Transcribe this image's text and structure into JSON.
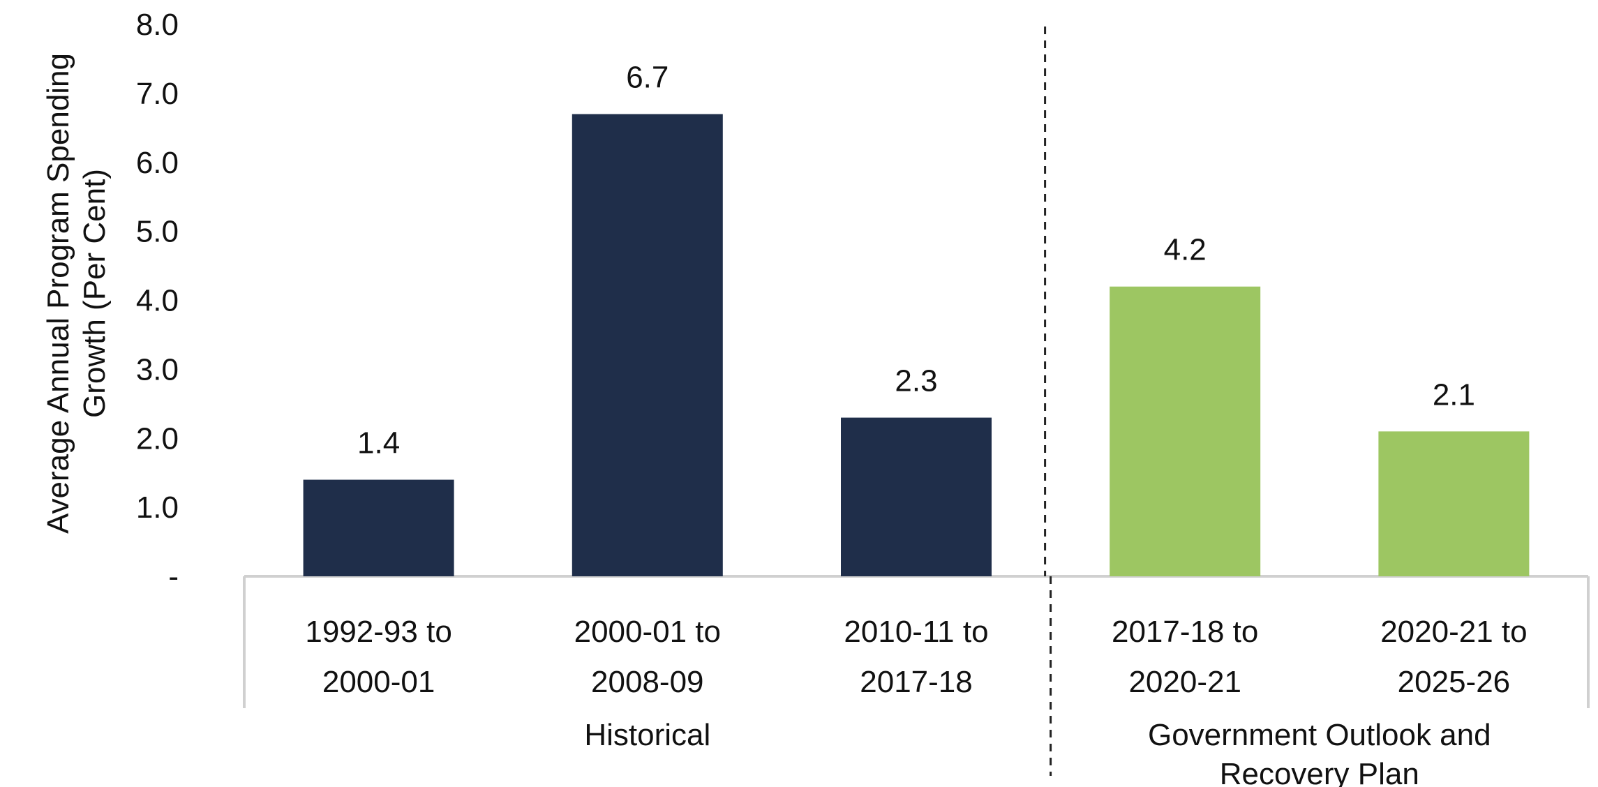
{
  "chart_data": {
    "type": "bar",
    "ylabel": "Average Annual Program Spending Growth (Per Cent)",
    "ylabel_lines": [
      "Average Annual Program Spending",
      "Growth (Per Cent)"
    ],
    "ylim": [
      0,
      8
    ],
    "yticks": [
      0,
      1,
      2,
      3,
      4,
      5,
      6,
      7,
      8
    ],
    "ytick_labels": [
      "-",
      "1.0",
      "2.0",
      "3.0",
      "4.0",
      "5.0",
      "6.0",
      "7.0",
      "8.0"
    ],
    "grid": false,
    "categories": [
      {
        "label": "1992-93 to 2000-01",
        "lines": [
          "1992-93 to",
          "2000-01"
        ],
        "value": 1.4,
        "data_label": "1.4",
        "group": "Historical"
      },
      {
        "label": "2000-01 to 2008-09",
        "lines": [
          "2000-01 to",
          "2008-09"
        ],
        "value": 6.7,
        "data_label": "6.7",
        "group": "Historical"
      },
      {
        "label": "2010-11 to 2017-18",
        "lines": [
          "2010-11 to",
          "2017-18"
        ],
        "value": 2.3,
        "data_label": "2.3",
        "group": "Historical"
      },
      {
        "label": "2017-18 to 2020-21",
        "lines": [
          "2017-18 to",
          "2020-21"
        ],
        "value": 4.2,
        "data_label": "4.2",
        "group": "Government Outlook and Recovery Plan"
      },
      {
        "label": "2020-21 to 2025-26",
        "lines": [
          "2020-21 to",
          "2025-26"
        ],
        "value": 2.1,
        "data_label": "2.1",
        "group": "Government Outlook and Recovery Plan"
      }
    ],
    "groups": [
      {
        "name": "Historical",
        "lines": [
          "Historical"
        ],
        "color": "#1f2e4a"
      },
      {
        "name": "Government Outlook and Recovery Plan",
        "lines": [
          "Government Outlook and",
          "Recovery Plan"
        ],
        "color": "#9dc662"
      }
    ],
    "separator": "dashed vertical line between Historical and Government Outlook and Recovery Plan"
  }
}
